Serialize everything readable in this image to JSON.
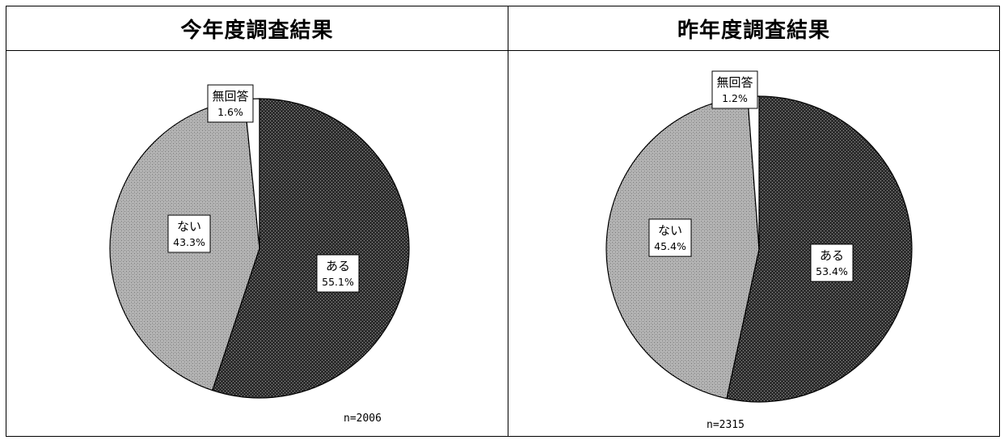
{
  "chart_data": [
    {
      "type": "pie",
      "title": "今年度調査結果",
      "n_label": "n=2006",
      "slices": [
        {
          "label": "ある",
          "value": 55.1,
          "value_label": "55.1%",
          "pattern": "dark"
        },
        {
          "label": "ない",
          "value": 43.3,
          "value_label": "43.3%",
          "pattern": "light"
        },
        {
          "label": "無回答",
          "value": 1.6,
          "value_label": "1.6%",
          "pattern": "none"
        }
      ]
    },
    {
      "type": "pie",
      "title": "昨年度調査結果",
      "n_label": "n=2315",
      "slices": [
        {
          "label": "ある",
          "value": 53.4,
          "value_label": "53.4%",
          "pattern": "dark"
        },
        {
          "label": "ない",
          "value": 45.4,
          "value_label": "45.4%",
          "pattern": "light"
        },
        {
          "label": "無回答",
          "value": 1.2,
          "value_label": "1.2%",
          "pattern": "none"
        }
      ]
    }
  ]
}
